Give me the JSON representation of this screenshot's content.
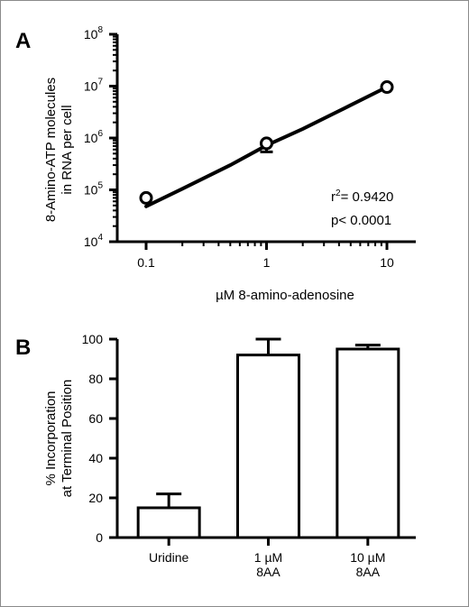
{
  "chart_data": [
    {
      "panel": "A",
      "type": "scatter",
      "xlabel": "µM 8-amino-adenosine",
      "ylabel_lines": [
        "8-Amino-ATP molecules",
        "in RNA per cell"
      ],
      "x_scale": "log",
      "y_scale": "log",
      "xlim": [
        0.1,
        10
      ],
      "ylim": [
        10000,
        100000000
      ],
      "x_ticks": [
        {
          "value": 0.1,
          "label": "0.1"
        },
        {
          "value": 1,
          "label": "1"
        },
        {
          "value": 10,
          "label": "10"
        }
      ],
      "y_ticks": [
        {
          "value": 10000,
          "base": "10",
          "exp": "4"
        },
        {
          "value": 100000,
          "base": "10",
          "exp": "5"
        },
        {
          "value": 1000000,
          "base": "10",
          "exp": "6"
        },
        {
          "value": 10000000,
          "base": "10",
          "exp": "7"
        },
        {
          "value": 100000000,
          "base": "10",
          "exp": "8"
        }
      ],
      "points": [
        {
          "x": 0.1,
          "y": 70000,
          "err": 0
        },
        {
          "x": 1,
          "y": 790000,
          "err": 250000
        },
        {
          "x": 10,
          "y": 9600000,
          "err": 0
        }
      ],
      "fit_line": [
        {
          "x": 0.1,
          "y": 48000
        },
        {
          "x": 0.2,
          "y": 105000
        },
        {
          "x": 0.5,
          "y": 300000
        },
        {
          "x": 1,
          "y": 720000
        },
        {
          "x": 2,
          "y": 1500000
        },
        {
          "x": 5,
          "y": 4300000
        },
        {
          "x": 10,
          "y": 9600000
        }
      ],
      "annotation_r2_prefix": "r",
      "annotation_r2_sup": "2",
      "annotation_r2_value": "= 0.9420",
      "annotation_p": "p< 0.0001",
      "grid": false
    },
    {
      "panel": "B",
      "type": "bar",
      "ylabel_lines": [
        "% Incorporation",
        "at Terminal Position"
      ],
      "ylim": [
        0,
        100
      ],
      "y_ticks": [
        0,
        20,
        40,
        60,
        80,
        100
      ],
      "categories": [
        {
          "lines": [
            "Uridine"
          ]
        },
        {
          "lines": [
            "1 µM",
            "8AA"
          ]
        },
        {
          "lines": [
            "10 µM",
            "8AA"
          ]
        }
      ],
      "values": [
        15,
        92,
        95
      ],
      "errors": [
        7,
        8,
        2
      ],
      "grid": false
    }
  ]
}
